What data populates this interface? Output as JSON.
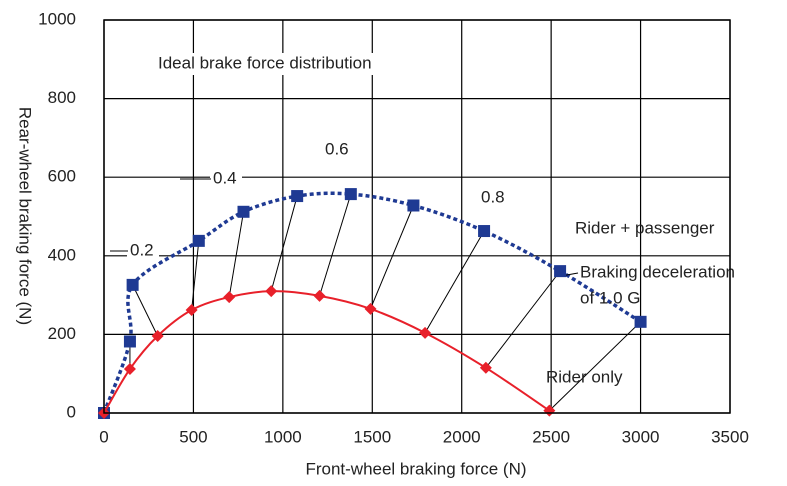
{
  "chart_data": {
    "type": "line",
    "xlabel": "Front-wheel braking force (N)",
    "ylabel": "Rear-wheel braking force (N)",
    "xlim": [
      0,
      3500
    ],
    "xticks": [
      0,
      500,
      1000,
      1500,
      2000,
      2500,
      3000,
      3500
    ],
    "ylim": [
      0,
      1000
    ],
    "yticks": [
      0,
      200,
      400,
      600,
      800,
      1000
    ],
    "grid": true,
    "series": [
      {
        "name": "Rider + passenger",
        "color": "#1f3a93",
        "marker": "square",
        "linestyle": "dotted",
        "x": [
          0,
          145,
          160,
          530,
          780,
          1080,
          1380,
          1730,
          2125,
          2550,
          3000
        ],
        "values": [
          0,
          182,
          326,
          438,
          512,
          552,
          557,
          528,
          463,
          361,
          232
        ]
      },
      {
        "name": "Rider only",
        "color": "#e8202a",
        "marker": "diamond",
        "linestyle": "solid",
        "x": [
          0,
          145,
          300,
          490,
          700,
          935,
          1205,
          1490,
          1795,
          2135,
          2490
        ],
        "values": [
          0,
          112,
          196,
          262,
          295,
          310,
          298,
          265,
          204,
          115,
          6
        ]
      }
    ],
    "annotations": [
      "Ideal brake force distribution",
      "0.2",
      "0.4",
      "0.6",
      "0.8",
      "Braking deceleration",
      "of 1.0 G"
    ]
  }
}
